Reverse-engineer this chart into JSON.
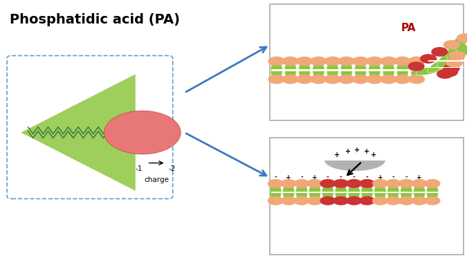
{
  "title": "Phosphatidic acid (PA)",
  "title_fontsize": 14,
  "title_fontweight": "bold",
  "bg_color": "#ffffff",
  "green_lipid": "#8dc63f",
  "peach_head": "#f0a878",
  "red_head": "#cc3333",
  "dark_red_label": "#aa0000",
  "blue_arrow": "#3b78c3",
  "gray_protein": "#aaaaaa",
  "dashed_box_color": "#5a9fd4",
  "panel_border": "#aaaaaa",
  "cone_alpha": 0.85,
  "zigzag_color": "#3a7a3a",
  "pa_label": "PA"
}
